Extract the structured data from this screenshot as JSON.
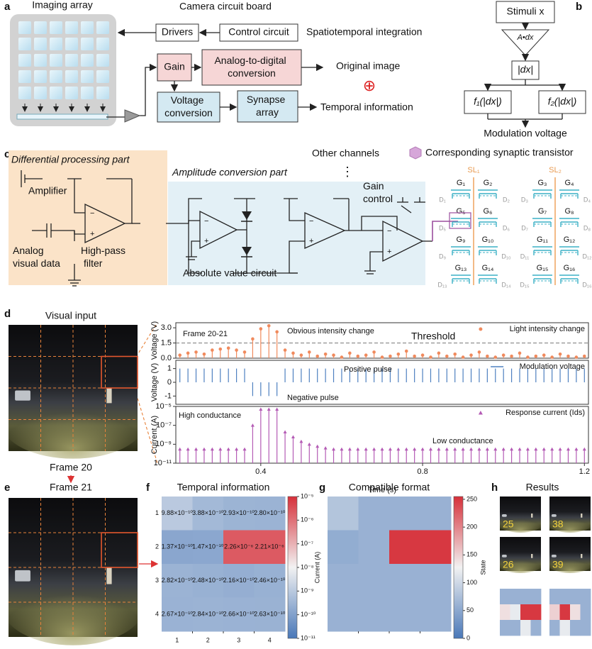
{
  "panel_labels": [
    "a",
    "b",
    "c",
    "d",
    "e",
    "f",
    "g",
    "h"
  ],
  "panel_a": {
    "imaging_array": "Imaging array",
    "camera_board": "Camera circuit board",
    "drivers": "Drivers",
    "control_circuit": "Control circuit",
    "spatiotemporal": "Spatiotemporal integration",
    "gain": "Gain",
    "adc": [
      "Analog-to-digital",
      "conversion"
    ],
    "original_image": "Original image",
    "combine": "⊕",
    "voltage_conversion": [
      "Voltage",
      "conversion"
    ],
    "synapse_array": [
      "Synapse",
      "array"
    ],
    "temporal_information": "Temporal information"
  },
  "panel_b": {
    "stimuli": "Stimuli x",
    "integrator": "A•dx",
    "abs": "|dx|",
    "f1": "f₁(|dx|)",
    "f2": "f₂(|dx|)",
    "output": "Modulation voltage"
  },
  "panel_c": {
    "differential": "Differential processing part",
    "amplifier": "Amplifier",
    "analog_visual_data": [
      "Analog",
      "visual data"
    ],
    "high_pass_filter": [
      "High-pass",
      "filter"
    ],
    "amplitude": "Amplitude conversion part",
    "absolute": "Absolute value circuit",
    "other_channels": "Other channels",
    "ellipsis": "⋮",
    "gain_control": [
      "Gain",
      "control"
    ],
    "transistor_legend": "Corresponding synaptic transistor",
    "minus": "−",
    "plus": "+",
    "source_lines": [
      "SL₁",
      "SL₂"
    ],
    "gates": [
      "G₁",
      "G₂",
      "G₃",
      "G₄",
      "G₅",
      "G₆",
      "G₇",
      "G₈",
      "G₉",
      "G₁₀",
      "G₁₁",
      "G₁₂",
      "G₁₃",
      "G₁₄",
      "G₁₅",
      "G₁₆"
    ],
    "drains": [
      "D₁",
      "D₂",
      "D₃",
      "D₄",
      "D₅",
      "D₆",
      "D₇",
      "D₈",
      "D₉",
      "D₁₀",
      "D₁₁",
      "D₁₂",
      "D₁₃",
      "D₁₄",
      "D₁₅",
      "D₁₆"
    ]
  },
  "panel_d": {
    "title": "Visual input"
  },
  "panel_e": {
    "frame_20": "Frame 20",
    "frame_21": "Frame 21"
  },
  "panel_h": {
    "title": "Results",
    "frame_numbers": [
      "25",
      "38",
      "26",
      "39"
    ],
    "state_maps": [
      [
        [
          60,
          60,
          60,
          60
        ],
        [
          140,
          120,
          250,
          250
        ],
        [
          60,
          60,
          120,
          60
        ]
      ],
      [
        [
          60,
          60,
          60,
          60
        ],
        [
          150,
          250,
          140,
          60
        ],
        [
          60,
          120,
          60,
          60
        ]
      ]
    ]
  },
  "chart_data": [
    {
      "type": "stem",
      "ylabel": "Voltage (V)",
      "x": [
        0.2,
        0.22,
        0.24,
        0.26,
        0.28,
        0.3,
        0.32,
        0.34,
        0.36,
        0.38,
        0.4,
        0.42,
        0.44,
        0.46,
        0.48,
        0.5,
        0.52,
        0.54,
        0.56,
        0.58,
        0.6,
        0.62,
        0.64,
        0.66,
        0.68,
        0.7,
        0.72,
        0.74,
        0.76,
        0.78,
        0.8,
        0.82,
        0.84,
        0.86,
        0.88,
        0.9,
        0.92,
        0.94,
        0.96,
        0.98,
        1.0,
        1.02,
        1.04,
        1.06,
        1.08,
        1.1,
        1.12,
        1.14,
        1.16,
        1.18,
        1.2
      ],
      "xlim": [
        0.19,
        1.21
      ],
      "ylim": [
        0,
        3.5
      ],
      "yticks": [
        {
          "value": 0,
          "label": "0.0"
        },
        1.5,
        {
          "value": 3,
          "label": "3.0"
        }
      ],
      "series": [
        {
          "name": "Light intensity change",
          "color": "#f08a5d",
          "marker": "circle",
          "values": [
            0.3,
            0.5,
            0.6,
            0.4,
            0.8,
            0.9,
            1.0,
            0.8,
            0.6,
            1.9,
            2.9,
            3.2,
            2.6,
            0.8,
            0.5,
            0.3,
            0.6,
            0.2,
            0.4,
            0.3,
            0.1,
            0.5,
            0.2,
            0.3,
            0.6,
            0.1,
            0.2,
            0.4,
            0.7,
            0.2,
            0.3,
            0.1,
            0.5,
            0.2,
            0.4,
            0.1,
            0.3,
            0.6,
            0.2,
            0.1,
            0.3,
            0.2,
            0.5,
            0.1,
            0.2,
            0.3,
            0.1,
            0.4,
            0.2,
            0.1,
            0.2
          ]
        }
      ],
      "threshold": {
        "value": 1.5,
        "label": "Threshold"
      },
      "annotations": [
        "Frame 20-21",
        "Obvious intensity change"
      ]
    },
    {
      "type": "stem",
      "ylabel": "Voltage (V)",
      "x": [
        0.2,
        0.22,
        0.24,
        0.26,
        0.28,
        0.3,
        0.32,
        0.34,
        0.36,
        0.38,
        0.4,
        0.42,
        0.44,
        0.46,
        0.48,
        0.5,
        0.52,
        0.54,
        0.56,
        0.58,
        0.6,
        0.62,
        0.64,
        0.66,
        0.68,
        0.7,
        0.72,
        0.74,
        0.76,
        0.78,
        0.8,
        0.82,
        0.84,
        0.86,
        0.88,
        0.9,
        0.92,
        0.94,
        0.96,
        0.98,
        1.0,
        1.02,
        1.04,
        1.06,
        1.08,
        1.1,
        1.12,
        1.14,
        1.16,
        1.18,
        1.2
      ],
      "xlim": [
        0.19,
        1.21
      ],
      "ylim": [
        -1.6,
        1.6
      ],
      "yticks": [
        -1,
        0,
        1
      ],
      "series": [
        {
          "name": "Modulation voltage",
          "color": "#4e80c0",
          "marker": "none",
          "values": [
            1,
            1,
            1,
            1,
            1,
            1,
            1,
            1,
            1,
            -1,
            -1,
            -1,
            -1,
            1,
            1,
            1,
            1,
            1,
            1,
            1,
            1,
            1,
            1,
            1,
            1,
            1,
            1,
            1,
            1,
            1,
            1,
            1,
            1,
            1,
            1,
            1,
            1,
            1,
            1,
            1,
            1,
            1,
            1,
            1,
            1,
            1,
            1,
            1,
            1,
            1,
            1
          ]
        }
      ],
      "annotations": [
        "Positive pulse",
        "Negative pulse"
      ]
    },
    {
      "type": "stem",
      "ylabel": "Current (A)",
      "xlabel": "Time (s)",
      "log": true,
      "x": [
        0.2,
        0.22,
        0.24,
        0.26,
        0.28,
        0.3,
        0.32,
        0.34,
        0.36,
        0.38,
        0.4,
        0.42,
        0.44,
        0.46,
        0.48,
        0.5,
        0.52,
        0.54,
        0.56,
        0.58,
        0.6,
        0.62,
        0.64,
        0.66,
        0.68,
        0.7,
        0.72,
        0.74,
        0.76,
        0.78,
        0.8,
        0.82,
        0.84,
        0.86,
        0.88,
        0.9,
        0.92,
        0.94,
        0.96,
        0.98,
        1.0,
        1.02,
        1.04,
        1.06,
        1.08,
        1.1,
        1.12,
        1.14,
        1.16,
        1.18,
        1.2
      ],
      "xlim": [
        0.19,
        1.21
      ],
      "xticks": [
        0.4,
        0.8,
        1.2
      ],
      "ylim": [
        1e-11,
        1e-05
      ],
      "yticks": [
        {
          "value": 1e-11,
          "label": "10⁻¹¹"
        },
        {
          "value": 1e-09,
          "label": "10⁻⁹"
        },
        {
          "value": 1e-07,
          "label": "10⁻⁷"
        },
        {
          "value": 1e-05,
          "label": "10⁻⁵"
        }
      ],
      "series": [
        {
          "name": "Response current (Ids)",
          "color": "#b45bb5",
          "marker": "triangle",
          "values": [
            3e-10,
            3e-10,
            3e-10,
            3e-10,
            3e-10,
            3e-10,
            3e-10,
            3e-10,
            3e-10,
            1e-07,
            5e-06,
            5e-06,
            5e-06,
            2e-08,
            6e-09,
            2e-09,
            1e-09,
            6e-10,
            4e-10,
            3e-10,
            3e-10,
            3e-10,
            3e-10,
            3e-10,
            3e-10,
            3e-10,
            3e-10,
            3e-10,
            3e-10,
            3e-10,
            3e-10,
            3e-10,
            3e-10,
            3e-10,
            3e-10,
            3e-10,
            3e-10,
            3e-10,
            3e-10,
            3e-10,
            3e-10,
            3e-10,
            3e-10,
            3e-10,
            3e-10,
            3e-10,
            3e-10,
            3e-10,
            3e-10,
            3e-10,
            3e-10
          ]
        }
      ],
      "annotations": [
        "High conductance",
        "Low conductance"
      ]
    },
    {
      "type": "heatmap",
      "title": "Temporal information",
      "x_categories": [
        "1",
        "2",
        "3",
        "4"
      ],
      "y_categories": [
        "1",
        "2",
        "3",
        "4"
      ],
      "values": [
        [
          9.88e-10,
          3.88e-10,
          2.93e-10,
          2.8e-10
        ],
        [
          1.37e-10,
          1.47e-10,
          2.26e-06,
          2.21e-06
        ],
        [
          2.82e-10,
          2.48e-10,
          2.16e-10,
          2.46e-10
        ],
        [
          2.67e-10,
          2.84e-10,
          2.66e-10,
          2.63e-10
        ]
      ],
      "value_labels": [
        [
          "9.88×10⁻¹⁰",
          "3.88×10⁻¹⁰",
          "2.93×10⁻¹⁰",
          "2.80×10⁻¹⁰"
        ],
        [
          "1.37×10⁻¹⁰",
          "1.47×10⁻¹⁰",
          "2.26×10⁻⁶",
          "2.21×10⁻⁶"
        ],
        [
          "2.82×10⁻¹⁰",
          "2.48×10⁻¹⁰",
          "2.16×10⁻¹⁰",
          "2.46×10⁻¹⁰"
        ],
        [
          "2.67×10⁻¹⁰",
          "2.84×10⁻¹⁰",
          "2.66×10⁻¹⁰",
          "2.63×10⁻¹⁰"
        ]
      ],
      "log": true,
      "zlim": [
        1e-11,
        1e-05
      ],
      "zticks": [
        {
          "value": 1e-11,
          "label": "10⁻¹¹"
        },
        {
          "value": 1e-10,
          "label": "10⁻¹⁰"
        },
        {
          "value": 1e-09,
          "label": "10⁻⁹"
        },
        {
          "value": 1e-08,
          "label": "10⁻⁸"
        },
        {
          "value": 1e-07,
          "label": "10⁻⁷"
        },
        {
          "value": 1e-06,
          "label": "10⁻⁶"
        },
        {
          "value": 1e-05,
          "label": "10⁻⁵"
        }
      ],
      "zlabel": "Current (A)",
      "colors": [
        "#4a78b8",
        "#f2f2f2",
        "#d6303a"
      ]
    },
    {
      "type": "heatmap",
      "title": "Compatible format",
      "values": [
        [
          80,
          60,
          60,
          60
        ],
        [
          55,
          60,
          250,
          250
        ],
        [
          60,
          60,
          60,
          60
        ],
        [
          60,
          60,
          60,
          60
        ]
      ],
      "zlim": [
        0,
        255
      ],
      "zticks": [
        0,
        50,
        100,
        150,
        200,
        250
      ],
      "zlabel": "State",
      "colors": [
        "#4a78b8",
        "#f2f2f2",
        "#d6303a"
      ]
    }
  ]
}
